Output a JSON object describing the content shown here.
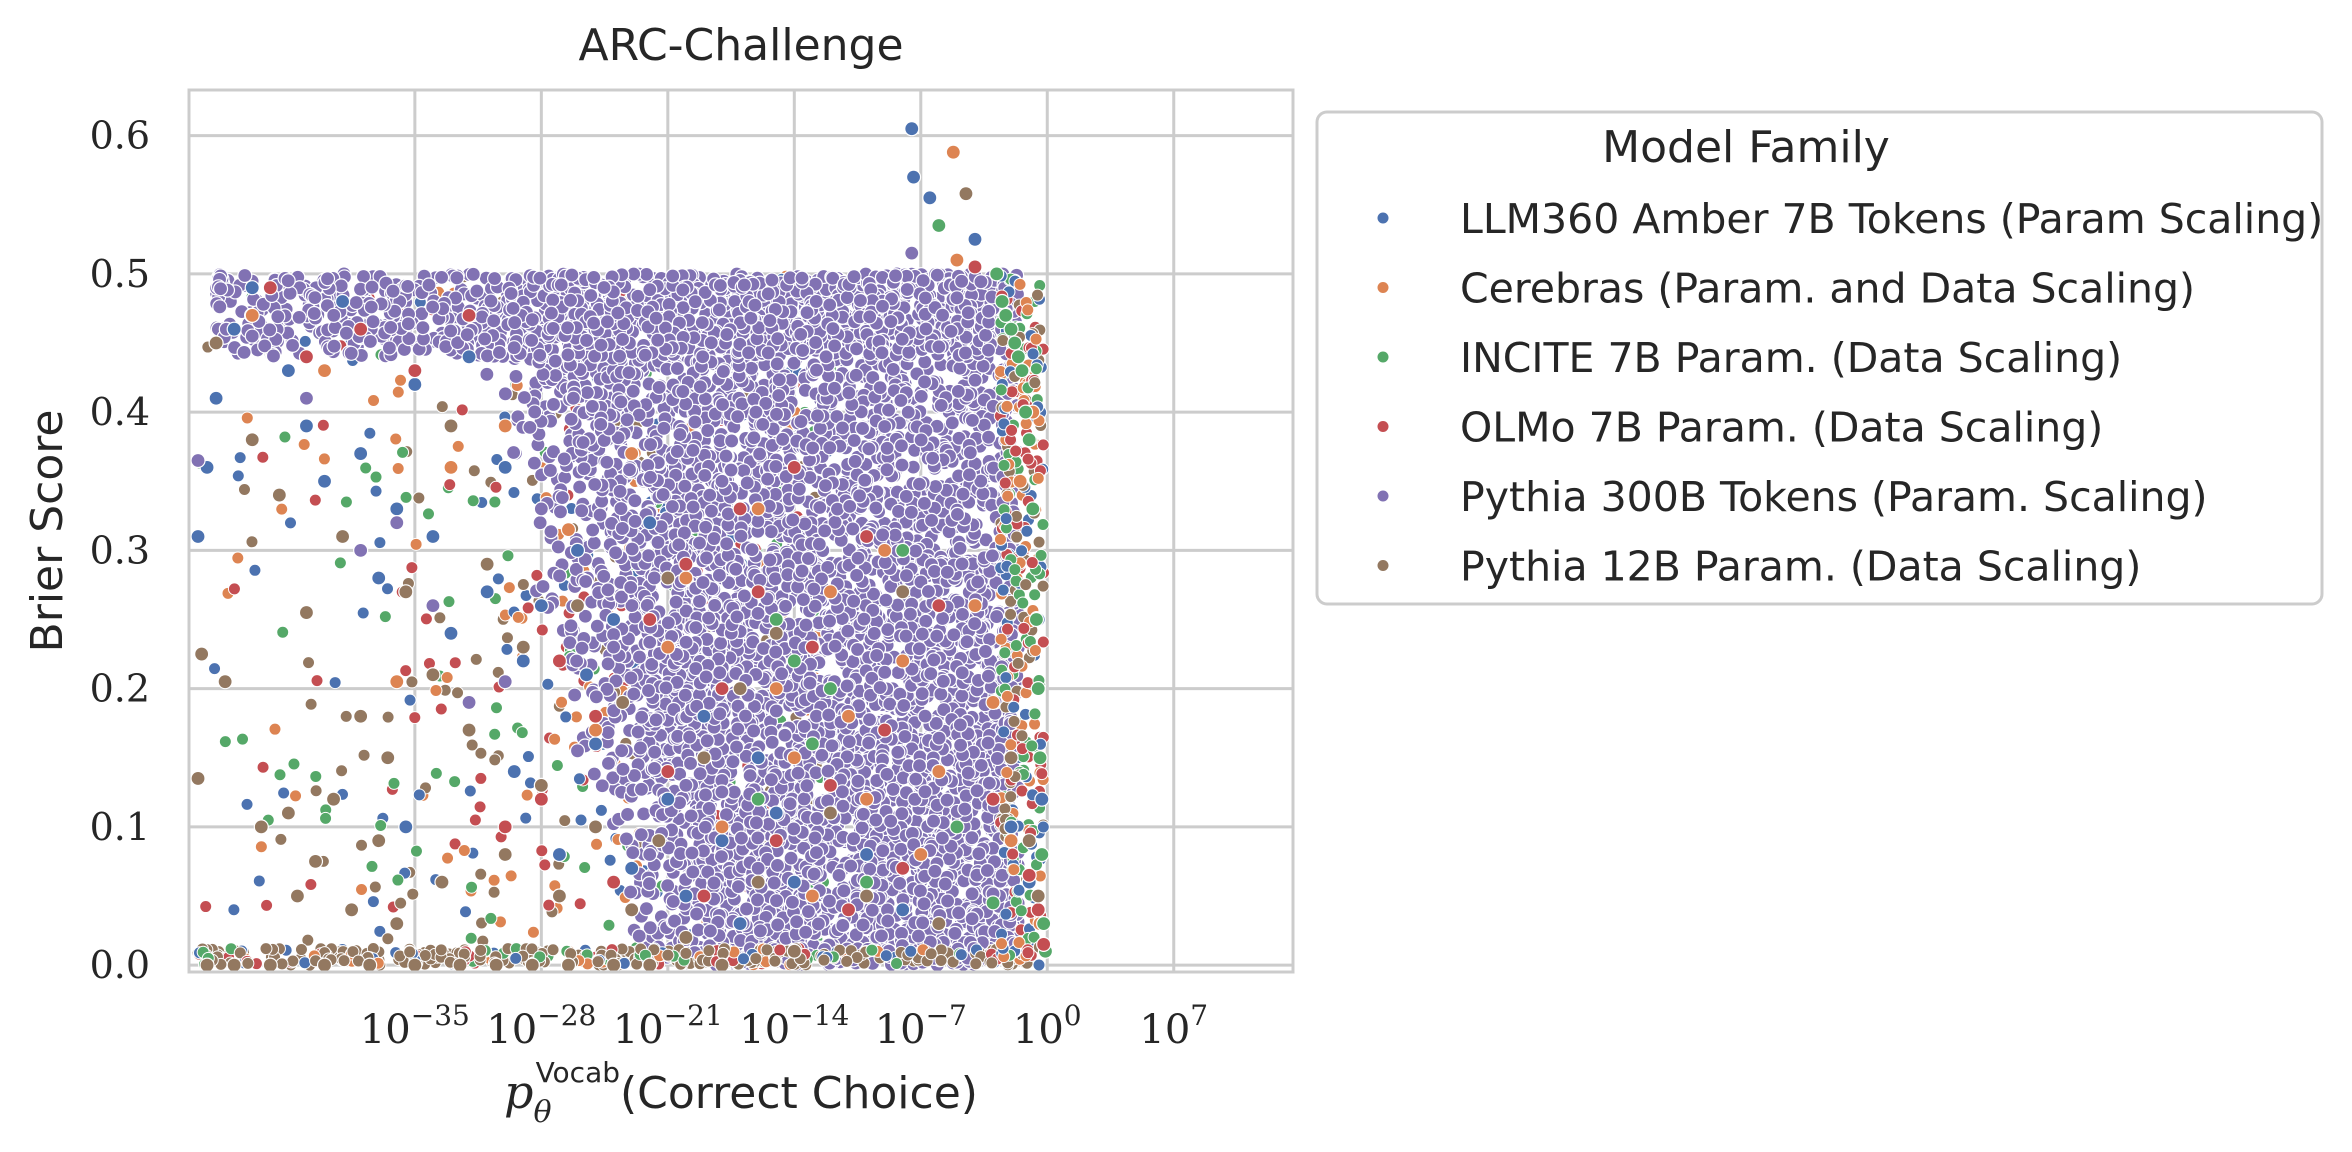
{
  "chart_data": {
    "type": "scatter",
    "title": "ARC-Challenge",
    "xlabel_math": "p",
    "xlabel_sub": "θ",
    "xlabel_sup": "Vocab",
    "xlabel_rest": "(Correct Choice)",
    "ylabel": "Brier Score",
    "x_scale": "log",
    "x_log10_range": [
      -47.5,
      13.6
    ],
    "ylim": [
      -0.005,
      0.633
    ],
    "grid": true,
    "x_ticks": [
      {
        "exp": -35,
        "label_base": "10",
        "label_exp": "−35"
      },
      {
        "exp": -28,
        "label_base": "10",
        "label_exp": "−28"
      },
      {
        "exp": -21,
        "label_base": "10",
        "label_exp": "−21"
      },
      {
        "exp": -14,
        "label_base": "10",
        "label_exp": "−14"
      },
      {
        "exp": -7,
        "label_base": "10",
        "label_exp": "−7"
      },
      {
        "exp": 0,
        "label_base": "10",
        "label_exp": "0"
      },
      {
        "exp": 7,
        "label_base": "10",
        "label_exp": "7"
      }
    ],
    "y_ticks": [
      {
        "value": 0.0,
        "label": "0.0"
      },
      {
        "value": 0.1,
        "label": "0.1"
      },
      {
        "value": 0.2,
        "label": "0.2"
      },
      {
        "value": 0.3,
        "label": "0.3"
      },
      {
        "value": 0.4,
        "label": "0.4"
      },
      {
        "value": 0.5,
        "label": "0.5"
      },
      {
        "value": 0.6,
        "label": "0.6"
      }
    ],
    "legend": {
      "title": "Model Family",
      "placement": "outside-right-top"
    },
    "series": [
      {
        "name": "LLM360 Amber 7B Tokens (Param Scaling)",
        "color": "#4c72b0",
        "points": [
          [
            -47,
            0.31
          ],
          [
            -46.5,
            0.36
          ],
          [
            -46,
            0.41
          ],
          [
            -45,
            0.46
          ],
          [
            -44,
            0.49
          ],
          [
            -42,
            0.43
          ],
          [
            -41,
            0.39
          ],
          [
            -40,
            0.35
          ],
          [
            -39,
            0.48
          ],
          [
            -38,
            0.37
          ],
          [
            -37,
            0.28
          ],
          [
            -36,
            0.33
          ],
          [
            -35.5,
            0.1
          ],
          [
            -35,
            0.42
          ],
          [
            -34,
            0.31
          ],
          [
            -33,
            0.24
          ],
          [
            -32,
            0.44
          ],
          [
            -31,
            0.27
          ],
          [
            -30,
            0.36
          ],
          [
            -29.5,
            0.14
          ],
          [
            -29,
            0.22
          ],
          [
            -28,
            0.26
          ],
          [
            -27,
            0.08
          ],
          [
            -26,
            0.3
          ],
          [
            -25.5,
            0.21
          ],
          [
            -25,
            0.16
          ],
          [
            -24,
            0.25
          ],
          [
            -23,
            0.07
          ],
          [
            -22,
            0.32
          ],
          [
            -21,
            0.12
          ],
          [
            -20,
            0.05
          ],
          [
            -19,
            0.18
          ],
          [
            -18,
            0.09
          ],
          [
            -17,
            0.03
          ],
          [
            -16,
            0.15
          ],
          [
            -15,
            0.11
          ],
          [
            -14,
            0.06
          ],
          [
            -12,
            0.13
          ],
          [
            -10,
            0.08
          ],
          [
            -8,
            0.04
          ],
          [
            -7.5,
            0.605
          ],
          [
            -7.4,
            0.57
          ],
          [
            -6.5,
            0.555
          ],
          [
            -4,
            0.525
          ],
          [
            -2,
            0.1
          ],
          [
            -1,
            0.06
          ],
          [
            -0.5,
            0.25
          ],
          [
            -0.3,
            0.12
          ]
        ]
      },
      {
        "name": "Cerebras (Param. and Data Scaling)",
        "color": "#dd8452",
        "points": [
          [
            -44,
            0.47
          ],
          [
            -40,
            0.43
          ],
          [
            -36,
            0.205
          ],
          [
            -33,
            0.36
          ],
          [
            -30,
            0.39
          ],
          [
            -26.5,
            0.315
          ],
          [
            -25,
            0.17
          ],
          [
            -23,
            0.37
          ],
          [
            -21,
            0.23
          ],
          [
            -20,
            0.28
          ],
          [
            -18,
            0.1
          ],
          [
            -16,
            0.33
          ],
          [
            -15,
            0.2
          ],
          [
            -14,
            0.15
          ],
          [
            -13,
            0.05
          ],
          [
            -12,
            0.27
          ],
          [
            -11,
            0.18
          ],
          [
            -10,
            0.12
          ],
          [
            -9,
            0.3
          ],
          [
            -8,
            0.22
          ],
          [
            -7,
            0.08
          ],
          [
            -6,
            0.14
          ],
          [
            -5.2,
            0.588
          ],
          [
            -5,
            0.51
          ],
          [
            -4,
            0.26
          ],
          [
            -3,
            0.19
          ],
          [
            -2,
            0.09
          ],
          [
            -1.5,
            0.35
          ],
          [
            -0.8,
            0.4
          ],
          [
            -0.4,
            0.03
          ]
        ]
      },
      {
        "name": "INCITE 7B Param. (Data Scaling)",
        "color": "#55a868",
        "points": [
          [
            -16,
            0.12
          ],
          [
            -15,
            0.25
          ],
          [
            -14,
            0.22
          ],
          [
            -13,
            0.16
          ],
          [
            -12,
            0.2
          ],
          [
            -10,
            0.06
          ],
          [
            -8,
            0.3
          ],
          [
            -6,
            0.535
          ],
          [
            -5,
            0.1
          ],
          [
            -3,
            0.045
          ],
          [
            -2.8,
            0.5
          ],
          [
            -2.5,
            0.48
          ],
          [
            -2.3,
            0.47
          ],
          [
            -2,
            0.46
          ],
          [
            -1.8,
            0.45
          ],
          [
            -1.6,
            0.44
          ],
          [
            -1.4,
            0.43
          ],
          [
            -1.2,
            0.4
          ],
          [
            -1,
            0.38
          ],
          [
            -0.8,
            0.33
          ],
          [
            -0.6,
            0.25
          ],
          [
            -0.5,
            0.2
          ],
          [
            -0.4,
            0.15
          ],
          [
            -0.3,
            0.08
          ],
          [
            -0.2,
            0.03
          ],
          [
            -0.1,
            0.01
          ]
        ]
      },
      {
        "name": "OLMo 7B Param. (Data Scaling)",
        "color": "#c44e52",
        "points": [
          [
            -43,
            0.49
          ],
          [
            -41,
            0.44
          ],
          [
            -38,
            0.46
          ],
          [
            -35,
            0.43
          ],
          [
            -32,
            0.47
          ],
          [
            -30,
            0.1
          ],
          [
            -28,
            0.12
          ],
          [
            -27,
            0.22
          ],
          [
            -25,
            0.18
          ],
          [
            -24,
            0.06
          ],
          [
            -22,
            0.25
          ],
          [
            -21,
            0.14
          ],
          [
            -20,
            0.29
          ],
          [
            -19,
            0.05
          ],
          [
            -18,
            0.2
          ],
          [
            -17,
            0.33
          ],
          [
            -16,
            0.27
          ],
          [
            -15,
            0.09
          ],
          [
            -14,
            0.36
          ],
          [
            -13,
            0.23
          ],
          [
            -12,
            0.13
          ],
          [
            -11,
            0.04
          ],
          [
            -10,
            0.31
          ],
          [
            -9,
            0.17
          ],
          [
            -8,
            0.07
          ],
          [
            -6,
            0.26
          ],
          [
            -4,
            0.505
          ],
          [
            -3,
            0.12
          ],
          [
            -1,
            0.065
          ],
          [
            -0.5,
            0.04
          ],
          [
            -0.2,
            0.015
          ]
        ]
      },
      {
        "name": "Pythia 300B Tokens (Param. Scaling)",
        "color": "#8172b3",
        "points": [
          [
            -47,
            0.365
          ],
          [
            -44,
            0.455
          ],
          [
            -41,
            0.41
          ],
          [
            -38,
            0.3
          ],
          [
            -36,
            0.32
          ],
          [
            -34,
            0.26
          ],
          [
            -32,
            0.19
          ],
          [
            -30,
            0.205
          ],
          [
            -28,
            0.33
          ],
          [
            -26,
            0.155
          ],
          [
            -24,
            0.23
          ],
          [
            -22,
            0.08
          ],
          [
            -20,
            0.13
          ],
          [
            -18,
            0.35
          ],
          [
            -16,
            0.07
          ],
          [
            -7.5,
            0.515
          ]
        ]
      },
      {
        "name": "Pythia 12B Param. (Data Scaling)",
        "color": "#937860",
        "points": [
          [
            -47,
            0.135
          ],
          [
            -46.8,
            0.225
          ],
          [
            -46.5,
            0.0
          ],
          [
            -46,
            0.45
          ],
          [
            -45.5,
            0.205
          ],
          [
            -45,
            0.0
          ],
          [
            -44,
            0.38
          ],
          [
            -43.5,
            0.1
          ],
          [
            -43,
            0.0
          ],
          [
            -42.5,
            0.34
          ],
          [
            -42,
            0.11
          ],
          [
            -41.5,
            0.05
          ],
          [
            -41,
            0.255
          ],
          [
            -40.5,
            0.075
          ],
          [
            -40,
            0.0
          ],
          [
            -39.5,
            0.12
          ],
          [
            -39,
            0.31
          ],
          [
            -38.5,
            0.04
          ],
          [
            -38,
            0.18
          ],
          [
            -37.5,
            0.0
          ],
          [
            -37,
            0.09
          ],
          [
            -36.5,
            0.15
          ],
          [
            -36,
            0.03
          ],
          [
            -35.5,
            0.27
          ],
          [
            -35,
            0.0
          ],
          [
            -34,
            0.21
          ],
          [
            -33.5,
            0.06
          ],
          [
            -33,
            0.39
          ],
          [
            -32.5,
            0.0
          ],
          [
            -32,
            0.17
          ],
          [
            -31,
            0.29
          ],
          [
            -30.5,
            0.0
          ],
          [
            -30,
            0.08
          ],
          [
            -29,
            0.23
          ],
          [
            -28.5,
            0.0
          ],
          [
            -28,
            0.13
          ],
          [
            -27,
            0.05
          ],
          [
            -26.5,
            0.0
          ],
          [
            -26,
            0.26
          ],
          [
            -25,
            0.1
          ],
          [
            -24,
            0.0
          ],
          [
            -23.5,
            0.19
          ],
          [
            -23,
            0.04
          ],
          [
            -22,
            0.0
          ],
          [
            -21.5,
            0.09
          ],
          [
            -21,
            0.28
          ],
          [
            -20,
            0.02
          ],
          [
            -19,
            0.15
          ],
          [
            -18,
            0.0
          ],
          [
            -17,
            0.2
          ],
          [
            -16,
            0.06
          ],
          [
            -15,
            0.24
          ],
          [
            -14,
            0.01
          ],
          [
            -12,
            0.11
          ],
          [
            -10,
            0.05
          ],
          [
            -8,
            0.27
          ],
          [
            -6,
            0.03
          ],
          [
            -4.5,
            0.558
          ],
          [
            -2,
            0.15
          ],
          [
            -1,
            0.09
          ],
          [
            -0.5,
            0.05
          ]
        ]
      }
    ]
  }
}
